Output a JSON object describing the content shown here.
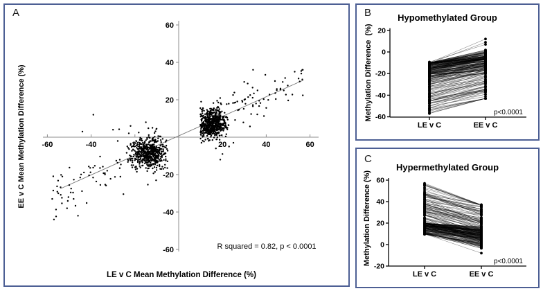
{
  "panel_border_color": "#4d5f94",
  "point_color": "#000000",
  "axis_color_scatter": "#8c8c8c",
  "axis_color_paired": "#000000",
  "regression_line_color": "#777777",
  "chart_data": [
    {
      "panel_label": "A",
      "type": "scatter",
      "xlabel": "LE v C Mean Methylation Difference (%)",
      "ylabel": "EE v C Mean Methylation Difference (%)",
      "annotation": "R squared = 0.82, p < 0.0001",
      "xlim": [
        -63,
        63
      ],
      "ylim": [
        -62,
        62
      ],
      "x_ticks": [
        -60,
        -40,
        -20,
        20,
        40,
        60
      ],
      "y_ticks": [
        60,
        40,
        20,
        -20,
        -40,
        -60
      ],
      "grid": false,
      "regression_line": {
        "x1": -54,
        "y1": -27.5,
        "x2": 57,
        "y2": 30.5
      },
      "seed": 42,
      "clusters": [
        {
          "kind": "gauss",
          "n": 560,
          "mx": 15.5,
          "my": 7,
          "sdx": 3.0,
          "sdy": 3.8,
          "clipx": [
            9.5,
            23
          ],
          "clipy": [
            -2,
            16
          ]
        },
        {
          "kind": "trend",
          "n": 120,
          "xmin": 10,
          "xmax": 57,
          "pow": 1.7,
          "slope": 0.52,
          "intercept": 1,
          "noise": 6,
          "clipy": [
            -7,
            36
          ]
        },
        {
          "kind": "gauss",
          "n": 500,
          "mx": -13.5,
          "my": -8.5,
          "sdx": 4.2,
          "sdy": 4.2,
          "clipx": [
            -26,
            -5
          ],
          "clipy": [
            -18.5,
            1.5
          ]
        },
        {
          "kind": "trend",
          "n": 110,
          "xmin": -10,
          "xmax": -58,
          "pow": 1.7,
          "slope": 0.52,
          "intercept": -1,
          "noise": 7,
          "clipy": [
            -47,
            6
          ]
        }
      ],
      "extra_points": [
        [
          -39,
          12
        ],
        [
          34,
          36
        ],
        [
          53,
          35
        ],
        [
          56,
          34
        ],
        [
          44,
          30
        ],
        [
          48,
          25
        ],
        [
          36,
          25
        ],
        [
          30,
          20
        ],
        [
          -44,
          3
        ],
        [
          -30,
          4
        ],
        [
          -15,
          8
        ],
        [
          -12,
          5
        ],
        [
          -22,
          6
        ],
        [
          17,
          -6
        ],
        [
          20,
          -9
        ],
        [
          23,
          -5
        ],
        [
          19,
          -12
        ],
        [
          25,
          -3
        ],
        [
          -57,
          -44
        ],
        [
          -46,
          -42
        ],
        [
          -51,
          -38
        ],
        [
          -48,
          -33
        ],
        [
          -55,
          -30
        ]
      ]
    },
    {
      "panel_label": "B",
      "type": "paired-lines",
      "title": "Hypomethylated Group",
      "ylabel": "Methylation Difference  (%)",
      "categories": [
        "LE v C",
        "EE v C"
      ],
      "ylim": [
        -60,
        20
      ],
      "y_ticks": [
        20,
        0,
        -20,
        -40,
        -60
      ],
      "p_text": "p<0.0001",
      "seed": 7,
      "groups": [
        {
          "n": 150,
          "le_min": -9.5,
          "le_max": -24,
          "pow": 1.5,
          "lift_base": 3,
          "lift_range": 9,
          "clip": [
            -43,
            12
          ]
        },
        {
          "n": 70,
          "le_min": -25,
          "le_max": -57,
          "pow": 1.3,
          "lift_base": 6,
          "lift_range": 10,
          "clip": [
            -43,
            12
          ]
        }
      ],
      "extra_pairs": [
        [
          -10,
          12
        ],
        [
          -10.5,
          9
        ],
        [
          -9.3,
          7
        ]
      ]
    },
    {
      "panel_label": "C",
      "type": "paired-lines",
      "title": "Hypermethylated Group",
      "ylabel": "Methylation Difference (%)",
      "categories": [
        "LE v C",
        "EE v C"
      ],
      "ylim": [
        -20,
        60
      ],
      "y_ticks": [
        60,
        40,
        20,
        0,
        -20
      ],
      "p_text": "p<0.0001",
      "seed": 13,
      "groups": [
        {
          "n": 150,
          "le_min": 20,
          "le_max": 9.5,
          "pow": 1.5,
          "lift_base": -3,
          "lift_range": -11,
          "clip": [
            -8,
            37
          ]
        },
        {
          "n": 80,
          "le_min": 20,
          "le_max": 57,
          "pow": 1.2,
          "lift_base": -6,
          "lift_range": -16,
          "clip": [
            -8,
            37
          ]
        }
      ],
      "extra_pairs": [
        [
          57,
          37
        ],
        [
          56,
          36
        ],
        [
          10,
          -8
        ]
      ]
    }
  ]
}
